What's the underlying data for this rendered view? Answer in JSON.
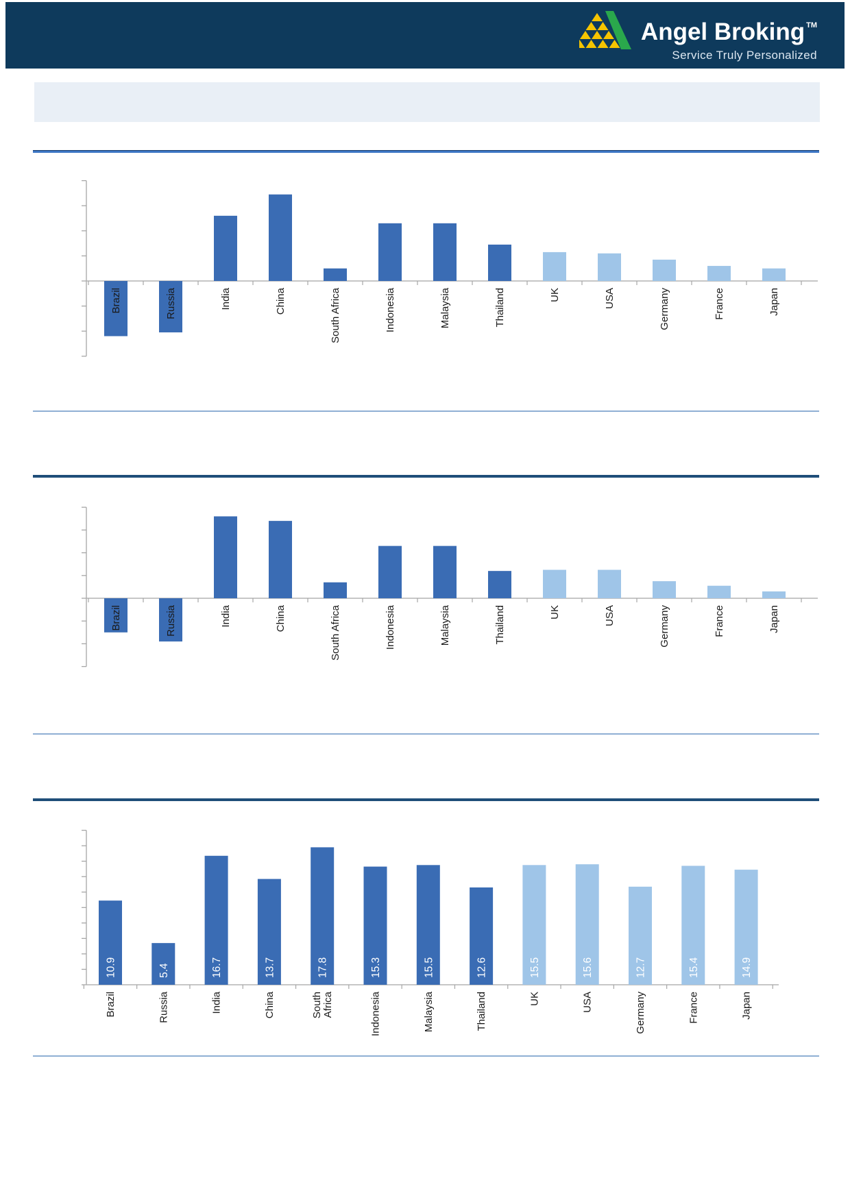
{
  "header": {
    "logo": {
      "brand": "Angel Broking",
      "trademark": "TM",
      "tagline": "Service Truly Personalized",
      "band_color": "#0e3a5c",
      "mark_green": "#2aa84c",
      "mark_yellow": "#f5c400"
    }
  },
  "title_box": {
    "text": "",
    "background_color": "#e9eff6"
  },
  "colors": {
    "bar_dark_blue": "#3a6cb4",
    "bar_light_blue": "#9fc5e8",
    "axis_gray": "#a6a6a6",
    "baseline_gray": "#b3b3b3",
    "label_text": "#1a1a1a",
    "rule_royal_blue": "#3d76c4",
    "rule_navy": "#1f4e79",
    "divider_blue": "#8fafd4"
  },
  "chart_data": [
    {
      "type": "bar",
      "title": "",
      "categories": [
        "Brazil",
        "Russia",
        "India",
        "China",
        "South Africa",
        "Indonesia",
        "Malaysia",
        "Thailand",
        "UK",
        "USA",
        "Germany",
        "France",
        "Japan"
      ],
      "values": [
        -2.2,
        -2.05,
        2.6,
        3.45,
        0.5,
        2.3,
        2.3,
        1.45,
        1.15,
        1.1,
        0.85,
        0.6,
        0.5
      ],
      "groups": [
        0,
        0,
        0,
        0,
        0,
        0,
        0,
        0,
        1,
        1,
        1,
        1,
        1
      ],
      "group_colors": [
        "#3a6cb4",
        "#9fc5e8"
      ],
      "xlabel": "",
      "ylabel": "",
      "ylim": [
        -3,
        4
      ],
      "ytick_step": 1,
      "grid": false,
      "legend": "none",
      "axis_tick_labels_visible": false,
      "data_labels_visible": false,
      "values_estimated_in_tick_units": true
    },
    {
      "type": "bar",
      "title": "",
      "categories": [
        "Brazil",
        "Russia",
        "India",
        "China",
        "South Africa",
        "Indonesia",
        "Malaysia",
        "Thailand",
        "UK",
        "USA",
        "Germany",
        "France",
        "Japan"
      ],
      "values": [
        -1.5,
        -1.9,
        3.6,
        3.4,
        0.7,
        2.3,
        2.3,
        1.2,
        1.25,
        1.25,
        0.75,
        0.55,
        0.3
      ],
      "groups": [
        0,
        0,
        0,
        0,
        0,
        0,
        0,
        0,
        1,
        1,
        1,
        1,
        1
      ],
      "group_colors": [
        "#3a6cb4",
        "#9fc5e8"
      ],
      "xlabel": "",
      "ylabel": "",
      "ylim": [
        -3,
        4
      ],
      "ytick_step": 1,
      "grid": false,
      "legend": "none",
      "axis_tick_labels_visible": false,
      "data_labels_visible": false,
      "values_estimated_in_tick_units": true
    },
    {
      "type": "bar",
      "title": "",
      "categories": [
        "Brazil",
        "Russia",
        "India",
        "China",
        "South Africa",
        "Indonesia",
        "Malaysia",
        "Thailand",
        "UK",
        "USA",
        "Germany",
        "France",
        "Japan"
      ],
      "values": [
        10.9,
        5.4,
        16.7,
        13.7,
        17.8,
        15.3,
        15.5,
        12.6,
        15.5,
        15.6,
        12.7,
        15.4,
        14.9
      ],
      "groups": [
        0,
        0,
        0,
        0,
        0,
        0,
        0,
        0,
        1,
        1,
        1,
        1,
        1
      ],
      "group_colors": [
        "#3a6cb4",
        "#9fc5e8"
      ],
      "xlabel": "",
      "ylabel": "",
      "ylim": [
        0,
        20
      ],
      "ytick_step": 2,
      "grid": false,
      "legend": "none",
      "axis_tick_labels_visible": false,
      "data_labels_visible": true,
      "data_label_color": "#ffffff"
    }
  ]
}
